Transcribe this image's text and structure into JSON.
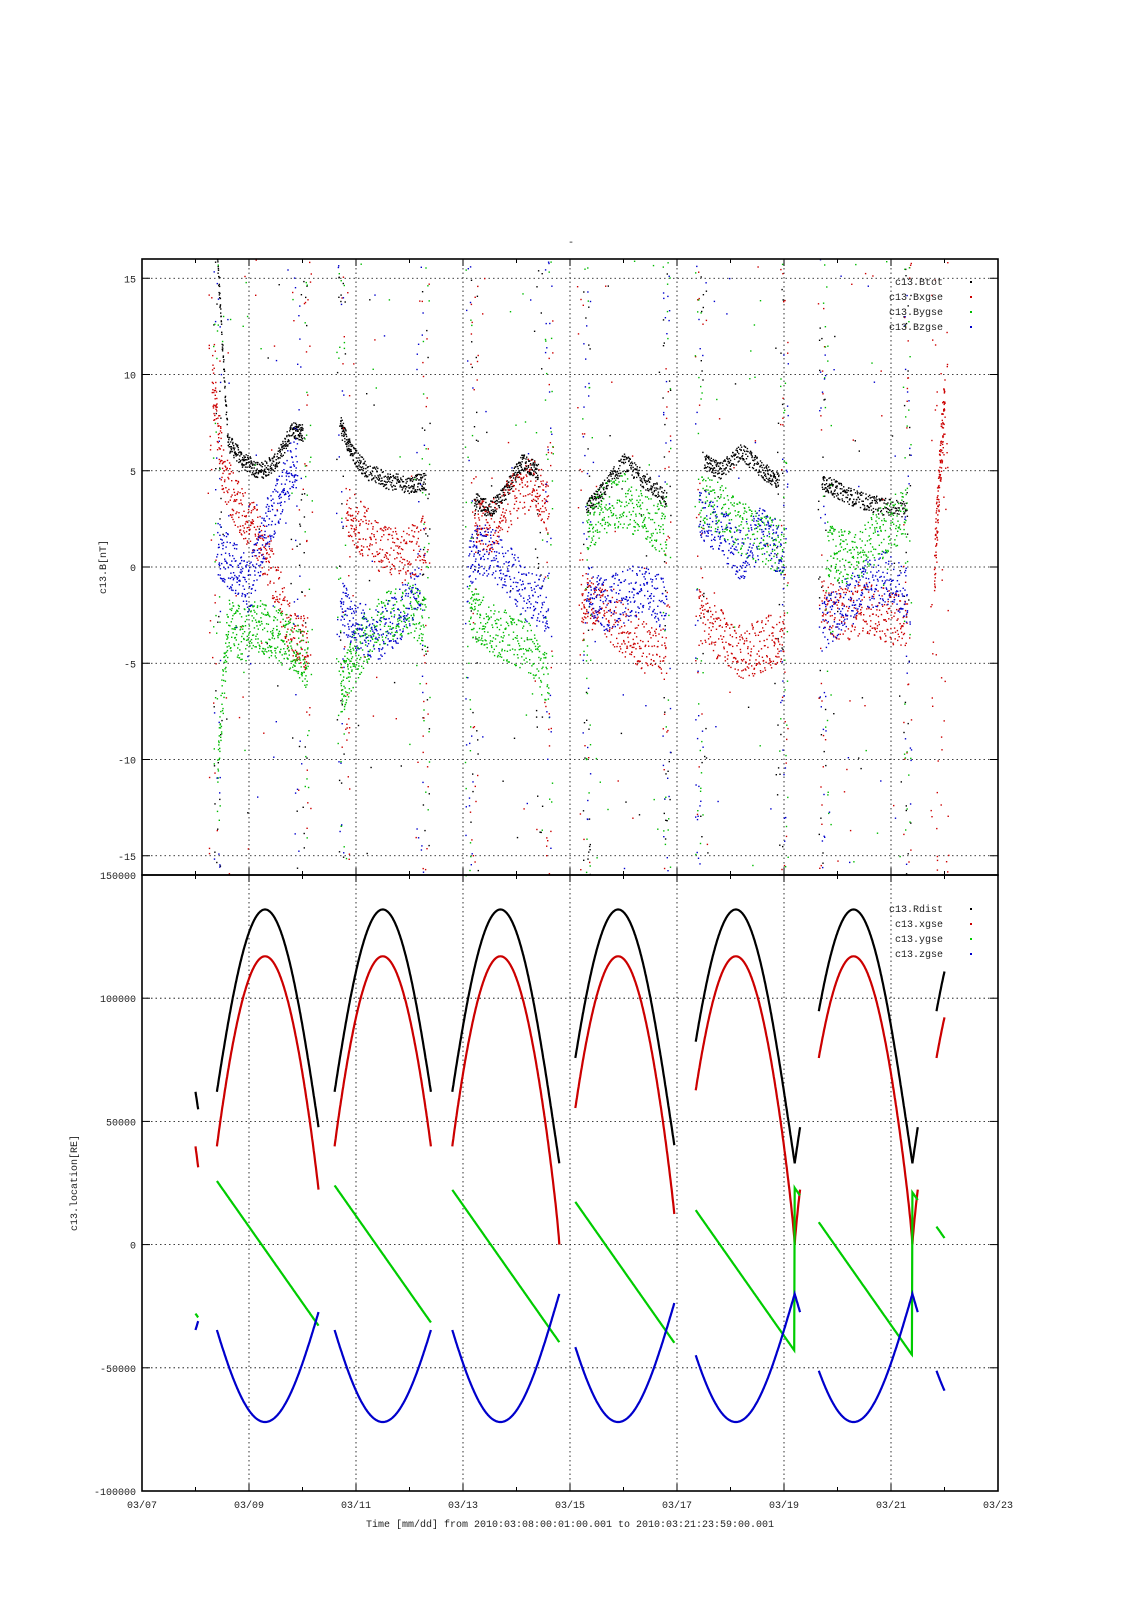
{
  "title": "-",
  "xlabel": "Time [mm/dd]  from 2010:03:08:00:01:00.001  to  2010:03:21:23:59:00.001",
  "x_ticks": [
    "03/07",
    "03/09",
    "03/11",
    "03/13",
    "03/15",
    "03/17",
    "03/19",
    "03/21",
    "03/23"
  ],
  "chart_data": [
    {
      "type": "scatter",
      "ylabel": "c13.B[nT]",
      "xlim": [
        7,
        23
      ],
      "ylim": [
        -16,
        16
      ],
      "y_ticks": [
        "15",
        "10",
        "5",
        "0",
        "-5",
        "-10",
        "-15"
      ],
      "y_tick_values": [
        15,
        10,
        5,
        0,
        -5,
        -10,
        -15
      ],
      "legend_position": "top-right",
      "series": [
        {
          "name": "c13.Btot",
          "color": "#000000",
          "segments": [
            {
              "x": [
                8.4,
                8.6,
                8.9,
                9.2,
                9.5,
                9.8,
                10.0
              ],
              "y": [
                16,
                6.5,
                5.5,
                5.0,
                5.5,
                7.2,
                7.0
              ]
            },
            {
              "x": [
                10.7,
                10.9,
                11.2,
                11.6,
                12.0,
                12.3
              ],
              "y": [
                7.5,
                6.0,
                5.0,
                4.5,
                4.3,
                4.5
              ]
            },
            {
              "x": [
                13.2,
                13.5,
                13.8,
                14.1,
                14.4
              ],
              "y": [
                3.5,
                3.0,
                4.0,
                5.5,
                5.0
              ]
            },
            {
              "x": [
                15.3,
                15.6,
                16.0,
                16.4,
                16.8
              ],
              "y": [
                3.0,
                4.0,
                5.5,
                4.5,
                3.5
              ]
            },
            {
              "x": [
                17.5,
                17.8,
                18.2,
                18.6,
                18.9
              ],
              "y": [
                5.5,
                5.0,
                6.0,
                5.0,
                4.5
              ]
            },
            {
              "x": [
                19.7,
                20.0,
                20.4,
                20.8,
                21.3
              ],
              "y": [
                4.5,
                4.0,
                3.5,
                3.2,
                3.0
              ]
            }
          ]
        },
        {
          "name": "c13.Bxgse",
          "color": "#cc0000",
          "segments": [
            {
              "x": [
                8.3,
                8.5,
                8.8,
                9.1,
                9.4,
                9.8,
                10.1
              ],
              "y": [
                10,
                5.0,
                3.0,
                2.0,
                0,
                -3.5,
                -4.0
              ]
            },
            {
              "x": [
                10.8,
                11.1,
                11.5,
                11.9,
                12.3
              ],
              "y": [
                3.0,
                2.0,
                1.0,
                0.5,
                1.5
              ]
            },
            {
              "x": [
                13.2,
                13.5,
                13.9,
                14.3,
                14.6
              ],
              "y": [
                2.5,
                2.0,
                3.5,
                4.5,
                3.0
              ]
            },
            {
              "x": [
                15.2,
                15.5,
                15.9,
                16.3,
                16.8
              ],
              "y": [
                -1.5,
                -2.0,
                -3.0,
                -4.0,
                -4.5
              ]
            },
            {
              "x": [
                17.4,
                17.8,
                18.2,
                18.6,
                19.0
              ],
              "y": [
                -2.5,
                -3.5,
                -4.5,
                -4.0,
                -3.5
              ]
            },
            {
              "x": [
                19.7,
                20.1,
                20.5,
                20.9,
                21.3
              ],
              "y": [
                -2.0,
                -2.5,
                -2.0,
                -2.5,
                -3.0
              ]
            },
            {
              "x": [
                21.8,
                21.9,
                22.0
              ],
              "y": [
                0,
                5.0,
                9.0
              ]
            }
          ]
        },
        {
          "name": "c13.Bygse",
          "color": "#00bb00",
          "segments": [
            {
              "x": [
                8.4,
                8.6,
                8.9,
                9.2,
                9.5,
                9.8,
                10.1
              ],
              "y": [
                -10,
                -3.0,
                -3.5,
                -3.0,
                -3.5,
                -4.0,
                -5.0
              ]
            },
            {
              "x": [
                10.7,
                10.9,
                11.2,
                11.6,
                12.0,
                12.3
              ],
              "y": [
                -6.5,
                -5.0,
                -3.5,
                -2.5,
                -2.0,
                -3.0
              ]
            },
            {
              "x": [
                13.1,
                13.4,
                13.8,
                14.2,
                14.6
              ],
              "y": [
                -2.0,
                -3.0,
                -3.5,
                -4.0,
                -6.0
              ]
            },
            {
              "x": [
                15.3,
                15.6,
                16.0,
                16.4,
                16.8
              ],
              "y": [
                2.0,
                3.0,
                3.5,
                2.5,
                2.0
              ]
            },
            {
              "x": [
                17.4,
                17.8,
                18.2,
                18.6,
                19.0
              ],
              "y": [
                3.5,
                3.0,
                2.0,
                1.5,
                1.0
              ]
            },
            {
              "x": [
                19.8,
                20.1,
                20.5,
                20.9,
                21.3
              ],
              "y": [
                1.0,
                0.5,
                1.0,
                2.0,
                3.0
              ]
            }
          ]
        },
        {
          "name": "c13.Bzgse",
          "color": "#0000cc",
          "segments": [
            {
              "x": [
                8.4,
                8.7,
                9.0,
                9.3,
                9.6,
                9.9
              ],
              "y": [
                1.0,
                0,
                -1.0,
                2.0,
                4.0,
                6.0
              ]
            },
            {
              "x": [
                10.7,
                11.0,
                11.4,
                11.8,
                12.2
              ],
              "y": [
                -2.0,
                -3.0,
                -3.5,
                -2.5,
                -1.0
              ]
            },
            {
              "x": [
                13.1,
                13.4,
                13.8,
                14.2,
                14.6
              ],
              "y": [
                0.5,
                1.0,
                0,
                -1.5,
                -2.0
              ]
            },
            {
              "x": [
                15.3,
                15.6,
                16.0,
                16.4,
                16.8
              ],
              "y": [
                -1.0,
                -2.0,
                -1.5,
                -1.0,
                -2.0
              ]
            },
            {
              "x": [
                17.4,
                17.8,
                18.2,
                18.6,
                19.0
              ],
              "y": [
                3.0,
                2.0,
                0.5,
                2.0,
                0.5
              ]
            },
            {
              "x": [
                19.7,
                20.1,
                20.5,
                20.9,
                21.3
              ],
              "y": [
                -3.0,
                -2.0,
                -1.0,
                -0.5,
                -1.5
              ]
            }
          ]
        }
      ]
    },
    {
      "type": "line",
      "ylabel": "c13.location[RE]",
      "xlim": [
        7,
        23
      ],
      "ylim": [
        -100000,
        150000
      ],
      "y_ticks": [
        "150000",
        "100000",
        "50000",
        "0",
        "-50000",
        "-100000"
      ],
      "y_tick_values": [
        150000,
        100000,
        50000,
        0,
        -50000,
        -100000
      ],
      "legend_position": "top-right",
      "orbit_segments": [
        [
          8.0,
          8.05
        ],
        [
          8.4,
          10.3
        ],
        [
          10.6,
          12.4
        ],
        [
          12.8,
          14.8
        ],
        [
          15.1,
          16.95
        ],
        [
          17.35,
          19.3
        ],
        [
          19.65,
          21.5
        ],
        [
          21.85,
          22.0
        ]
      ],
      "series": [
        {
          "name": "c13.Rdist",
          "color": "#000000",
          "orbit": {
            "period": 2.2,
            "perigee_phase": 0.2,
            "min": 33000,
            "max": 136000,
            "shape": 1.0
          }
        },
        {
          "name": "c13.xgse",
          "color": "#cc0000",
          "orbit": {
            "period": 2.2,
            "perigee_phase": 0.2,
            "min": 0,
            "max": 117000,
            "shape": 0.85
          }
        },
        {
          "name": "c13.ygse",
          "color": "#00cc00",
          "orbit": {
            "period": 2.2,
            "perigee_phase": 0.2,
            "start": 32000,
            "end": -36000,
            "drift": -1800
          }
        },
        {
          "name": "c13.zgse",
          "color": "#0000cc",
          "orbit": {
            "period": 2.2,
            "perigee_phase": 0.2,
            "min": -72000,
            "max": -20000,
            "shape": 1.0,
            "invert": true
          }
        }
      ]
    }
  ]
}
